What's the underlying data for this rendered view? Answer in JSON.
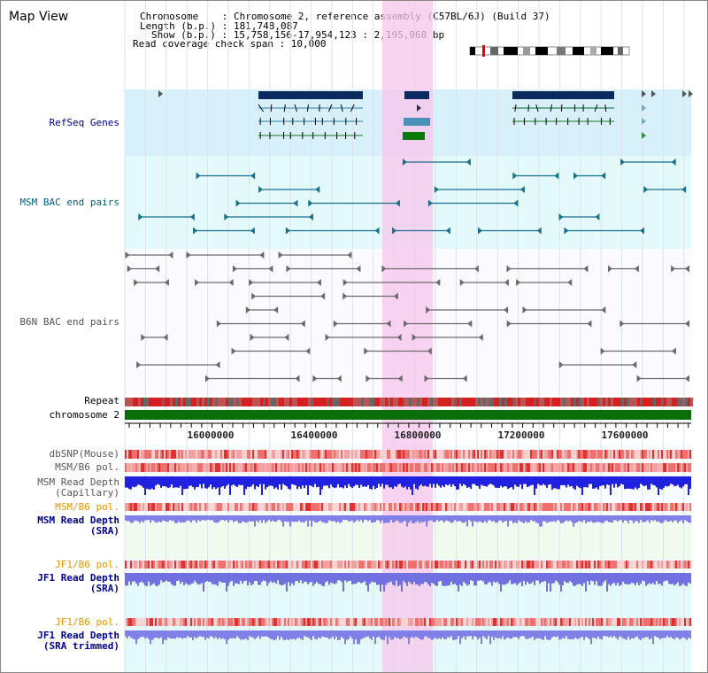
{
  "title": "Map View",
  "info": {
    "chromosome": "Chromosome    : Chromosome 2, reference assembly (C57BL/6J) (Build 37)",
    "length": "Length (b.p.) : 181,748,087",
    "show": "Show (b.p.) : 15,758,156-17,954,123 : 2,195,968 bp",
    "read_coverage": "Read coverage check span : 10,000"
  },
  "tracks": {
    "refseq": "RefSeq Genes",
    "msm_bac": "MSM BAC end pairs",
    "b6n_bac": "B6N BAC end pairs",
    "repeat": "Repeat",
    "chromosome": "chromosome 2",
    "dbsnp": "dbSNP(Mouse)",
    "msm_b6_pol_1": "MSM/B6 pol.",
    "msm_depth_cap": "MSM Read Depth\n(Capillary)",
    "msm_b6_pol_2": "MSM/B6 pol.",
    "msm_depth_sra": "MSM Read Depth\n(SRA)",
    "jf1_b6_pol_1": "JF1/B6 pol.",
    "jf1_depth_sra": "JF1 Read Depth\n(SRA)",
    "jf1_b6_pol_2": "JF1/B6 pol.",
    "jf1_depth_trim": "JF1 Read Depth\n(SRA trimmed)"
  },
  "axis": {
    "ticks": [
      "16000000",
      "16400000",
      "16800000",
      "17200000",
      "17600000"
    ]
  },
  "colors": {
    "refseq_label": "#00008b",
    "msm_bac_label": "#006080",
    "b6n_label": "#555555",
    "pol_orange": "#e69500",
    "depth_blue": "#00008b",
    "highlight": "#f7c6ec",
    "refseq_bg": "#d8f0fa",
    "msm_bg": "#e4fafa",
    "chrom_bar": "#0a6e0a"
  }
}
